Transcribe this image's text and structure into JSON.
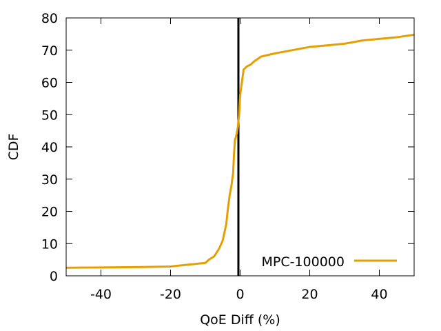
{
  "chart_data": {
    "type": "line",
    "title": "",
    "xlabel": "QoE Diff (%)",
    "ylabel": "CDF",
    "xlim": [
      -50,
      50
    ],
    "ylim": [
      0,
      80
    ],
    "xticks": [
      -40,
      -20,
      0,
      20,
      40
    ],
    "yticks": [
      0,
      10,
      20,
      30,
      40,
      50,
      60,
      70,
      80
    ],
    "xtick_labels": [
      "-40",
      "-20",
      "0",
      "20",
      "40"
    ],
    "ytick_labels": [
      "0",
      "10",
      "20",
      "30",
      "40",
      "50",
      "60",
      "70",
      "80"
    ],
    "grid": false,
    "legend_position": "bottom-right",
    "reference_line": {
      "x": -0.5,
      "color": "#000000"
    },
    "series": [
      {
        "name": "MPC-100000",
        "color": "#e69f00",
        "x": [
          -50,
          -40,
          -30,
          -20,
          -10,
          -9,
          -7.5,
          -6,
          -5,
          -4.5,
          -4,
          -3.5,
          -3,
          -2.5,
          -2,
          -1.8,
          -1.5,
          -1,
          -0.6,
          -0.5,
          -0.3,
          0,
          0.5,
          1,
          2,
          3,
          4,
          6,
          10,
          20,
          30,
          35,
          40,
          45,
          50
        ],
        "y": [
          2.5,
          2.6,
          2.7,
          2.9,
          4,
          5,
          6,
          8.5,
          11,
          13.5,
          16,
          21,
          25,
          28,
          32,
          37,
          42,
          44,
          46.5,
          48,
          50,
          56,
          60,
          64,
          65,
          65.5,
          66.5,
          68,
          69,
          71,
          72,
          73,
          73.5,
          74,
          74.8
        ]
      }
    ]
  }
}
